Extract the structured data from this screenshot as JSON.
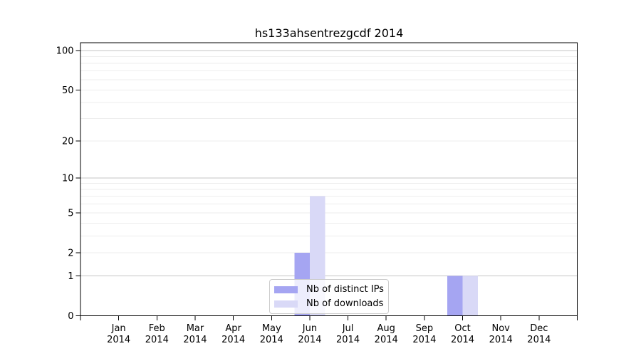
{
  "title": "hs133ahsentrezgcdf 2014",
  "chart_data": {
    "type": "bar",
    "title": "hs133ahsentrezgcdf 2014",
    "y_scale": "log10(value+1)",
    "categories": [
      "Jan",
      "Feb",
      "Mar",
      "Apr",
      "May",
      "Jun",
      "Jul",
      "Aug",
      "Sep",
      "Oct",
      "Nov",
      "Dec"
    ],
    "x_tick_year": "2014",
    "series": [
      {
        "name": "Nb of distinct IPs",
        "color": "#a5a5f2",
        "values": [
          0,
          0,
          0,
          0,
          0,
          2,
          0,
          0,
          0,
          1,
          0,
          0
        ]
      },
      {
        "name": "Nb of downloads",
        "color": "#d9d9f7",
        "values": [
          0,
          0,
          0,
          0,
          0,
          7,
          0,
          0,
          0,
          1,
          0,
          0
        ]
      }
    ],
    "y_ticks": [
      0,
      1,
      2,
      5,
      10,
      20,
      50,
      100
    ],
    "y_major_gridlines": [
      1,
      10,
      100
    ],
    "y_minor_gridlines": [
      2,
      3,
      4,
      5,
      6,
      7,
      8,
      9,
      20,
      30,
      40,
      50,
      60,
      70,
      80,
      90
    ],
    "ylim": [
      0,
      115
    ],
    "grid": "horizontal",
    "legend_position": "bottom-center-inside"
  },
  "colors": {
    "background": "#ffffff",
    "axis": "#000000",
    "major_grid": "#c4c4c4",
    "minor_grid": "#ededed",
    "legend_border": "#cccccc",
    "text": "#000000"
  }
}
